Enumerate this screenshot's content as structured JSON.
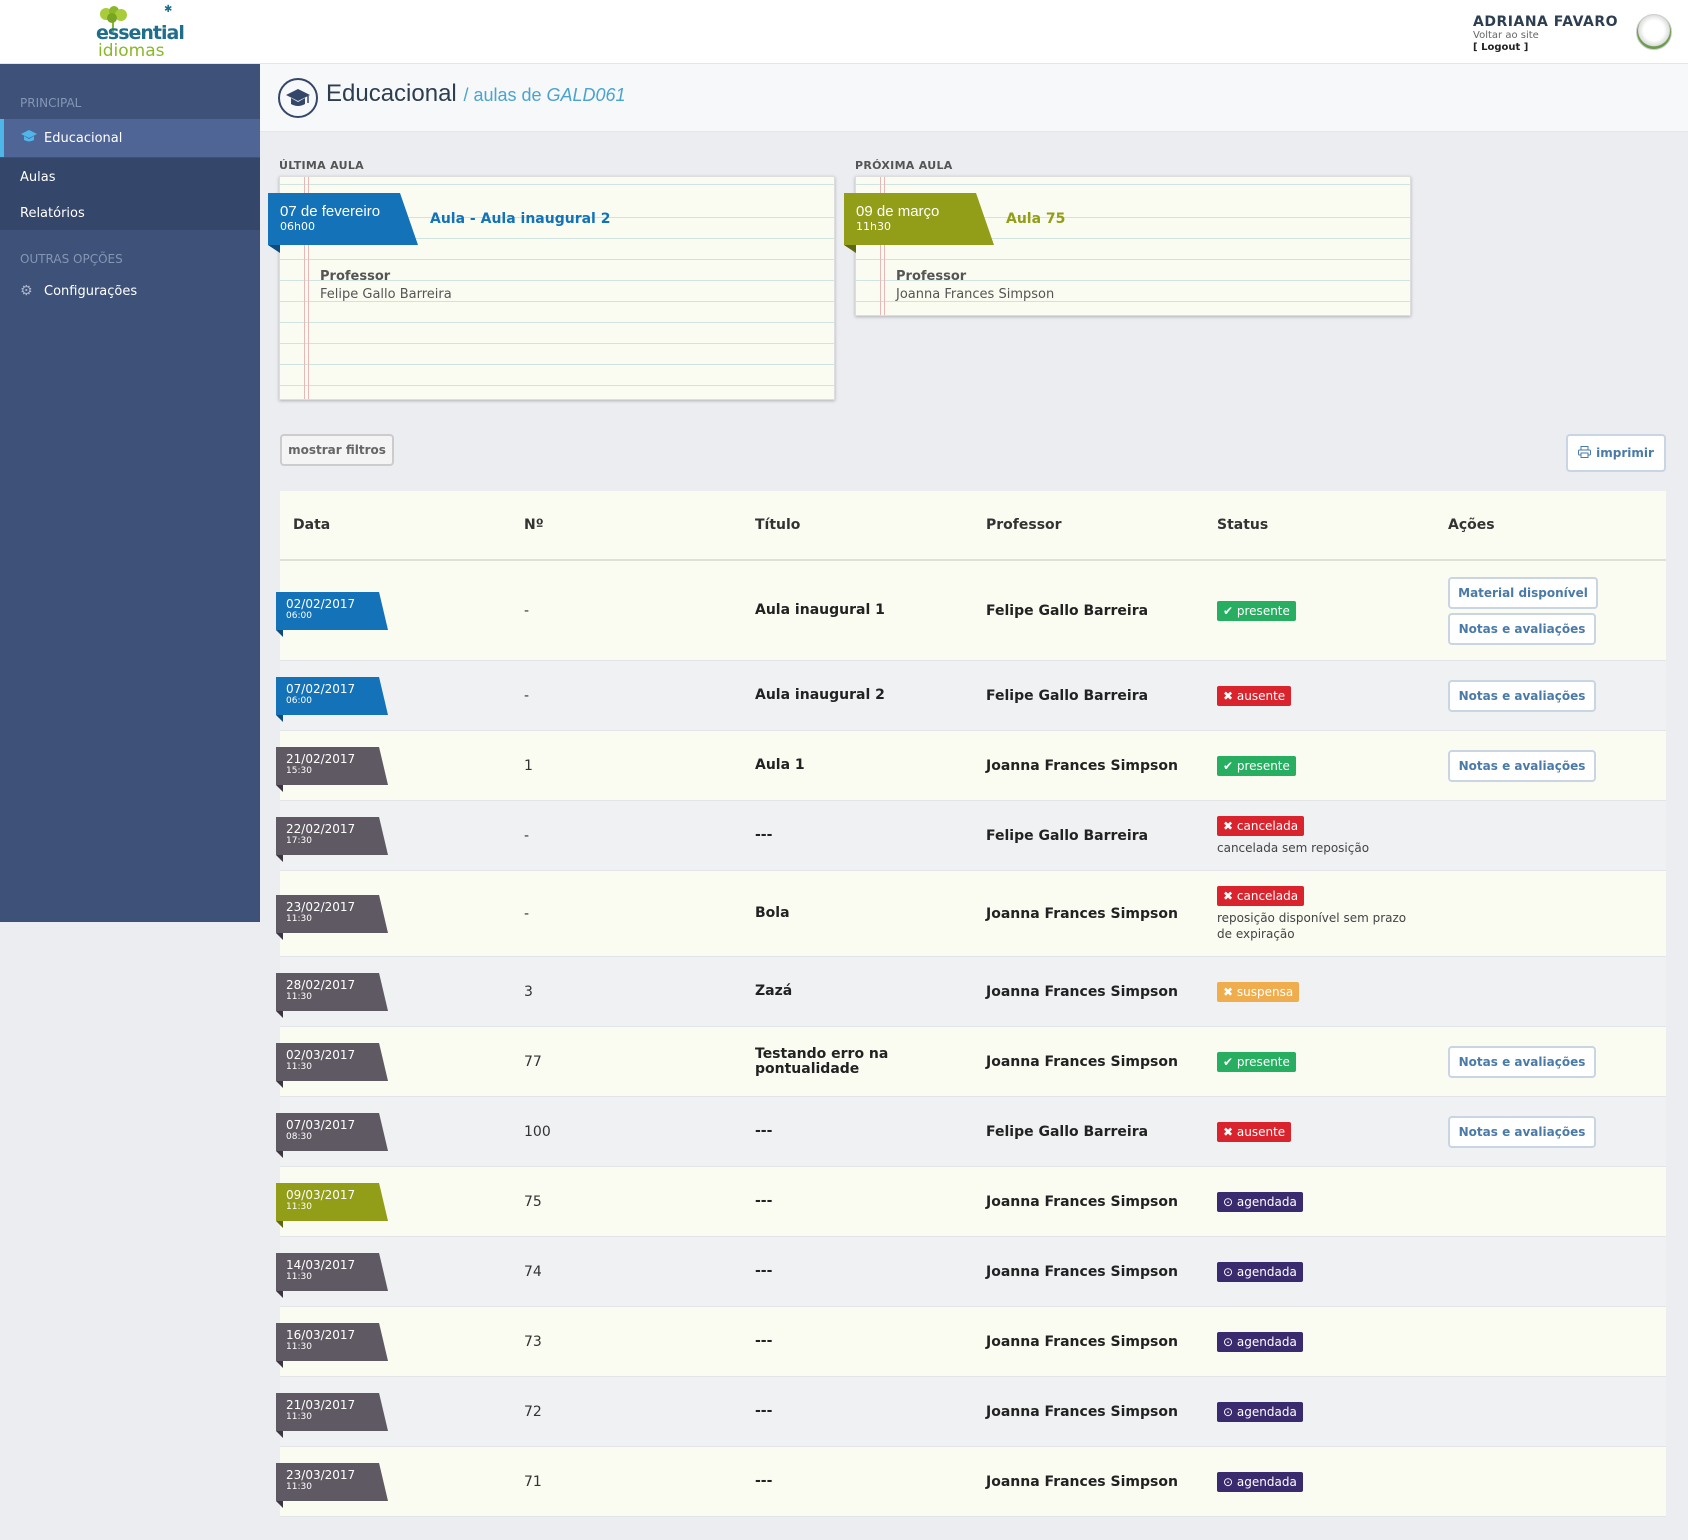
{
  "brand": {
    "word1": "essential",
    "word2": "idiomas"
  },
  "user": {
    "name": "ADRIANA FAVARO",
    "back_link": "Voltar ao site",
    "logout": "[ Logout ]"
  },
  "sidebar": {
    "section1": "PRINCIPAL",
    "section2": "OUTRAS OPÇÕES",
    "items": [
      {
        "label": "Educacional",
        "icon": "graduation-cap-icon"
      },
      {
        "label": "Aulas"
      },
      {
        "label": "Relatórios"
      },
      {
        "label": "Configurações",
        "icon": "gear-icon"
      }
    ]
  },
  "page": {
    "title": "Educacional",
    "sub_prefix": "/ aulas de ",
    "sub_code": "GALD061"
  },
  "last_class": {
    "label": "ÚLTIMA AULA",
    "date": "07 de fevereiro",
    "time": "06h00",
    "title": "Aula - Aula inaugural 2",
    "prof_label": "Professor",
    "prof": "Felipe Gallo Barreira"
  },
  "next_class": {
    "label": "PRÓXIMA AULA",
    "date": "09 de março",
    "time": "11h30",
    "title": "Aula 75",
    "prof_label": "Professor",
    "prof": "Joanna Frances Simpson"
  },
  "buttons": {
    "filters": "mostrar filtros",
    "print": "imprimir"
  },
  "table": {
    "headers": [
      "Data",
      "Nº",
      "Título",
      "Professor",
      "Status",
      "Ações"
    ],
    "rows": [
      {
        "date": "02/02/2017",
        "time": "06:00",
        "color": "blue",
        "num": "-",
        "title": "Aula inaugural 1",
        "prof": "Felipe Gallo Barreira",
        "status": "presente",
        "status_icon": "✔",
        "note": "",
        "actions": [
          "Material disponível",
          "Notas e avaliações"
        ]
      },
      {
        "date": "07/02/2017",
        "time": "06:00",
        "color": "blue",
        "num": "-",
        "title": "Aula inaugural 2",
        "prof": "Felipe Gallo Barreira",
        "status": "ausente",
        "status_icon": "✖",
        "note": "",
        "actions": [
          "Notas e avaliações"
        ]
      },
      {
        "date": "21/02/2017",
        "time": "15:30",
        "color": "gray",
        "num": "1",
        "title": "Aula 1",
        "prof": "Joanna Frances Simpson",
        "status": "presente",
        "status_icon": "✔",
        "note": "",
        "actions": [
          "Notas e avaliações"
        ]
      },
      {
        "date": "22/02/2017",
        "time": "17:30",
        "color": "gray",
        "num": "-",
        "title": "---",
        "prof": "Felipe Gallo Barreira",
        "status": "cancelada",
        "status_icon": "✖",
        "note": "cancelada sem reposição",
        "actions": []
      },
      {
        "date": "23/02/2017",
        "time": "11:30",
        "color": "gray",
        "num": "-",
        "title": "Bola",
        "prof": "Joanna Frances Simpson",
        "status": "cancelada",
        "status_icon": "✖",
        "note": "reposição disponível sem prazo de expiração",
        "actions": []
      },
      {
        "date": "28/02/2017",
        "time": "11:30",
        "color": "gray",
        "num": "3",
        "title": "Zazá",
        "prof": "Joanna Frances Simpson",
        "status": "suspensa",
        "status_icon": "✖",
        "note": "",
        "actions": []
      },
      {
        "date": "02/03/2017",
        "time": "11:30",
        "color": "gray",
        "num": "77",
        "title": "Testando erro na pontualidade",
        "prof": "Joanna Frances Simpson",
        "status": "presente",
        "status_icon": "✔",
        "note": "",
        "actions": [
          "Notas e avaliações"
        ]
      },
      {
        "date": "07/03/2017",
        "time": "08:30",
        "color": "gray",
        "num": "100",
        "title": "---",
        "prof": "Felipe Gallo Barreira",
        "status": "ausente",
        "status_icon": "✖",
        "note": "",
        "actions": [
          "Notas e avaliações"
        ]
      },
      {
        "date": "09/03/2017",
        "time": "11:30",
        "color": "green",
        "num": "75",
        "title": "---",
        "prof": "Joanna Frances Simpson",
        "status": "agendada",
        "status_icon": "⊙",
        "note": "",
        "actions": []
      },
      {
        "date": "14/03/2017",
        "time": "11:30",
        "color": "gray",
        "num": "74",
        "title": "---",
        "prof": "Joanna Frances Simpson",
        "status": "agendada",
        "status_icon": "⊙",
        "note": "",
        "actions": []
      },
      {
        "date": "16/03/2017",
        "time": "11:30",
        "color": "gray",
        "num": "73",
        "title": "---",
        "prof": "Joanna Frances Simpson",
        "status": "agendada",
        "status_icon": "⊙",
        "note": "",
        "actions": []
      },
      {
        "date": "21/03/2017",
        "time": "11:30",
        "color": "gray",
        "num": "72",
        "title": "---",
        "prof": "Joanna Frances Simpson",
        "status": "agendada",
        "status_icon": "⊙",
        "note": "",
        "actions": []
      },
      {
        "date": "23/03/2017",
        "time": "11:30",
        "color": "gray",
        "num": "71",
        "title": "---",
        "prof": "Joanna Frances Simpson",
        "status": "agendada",
        "status_icon": "⊙",
        "note": "",
        "actions": []
      }
    ]
  }
}
